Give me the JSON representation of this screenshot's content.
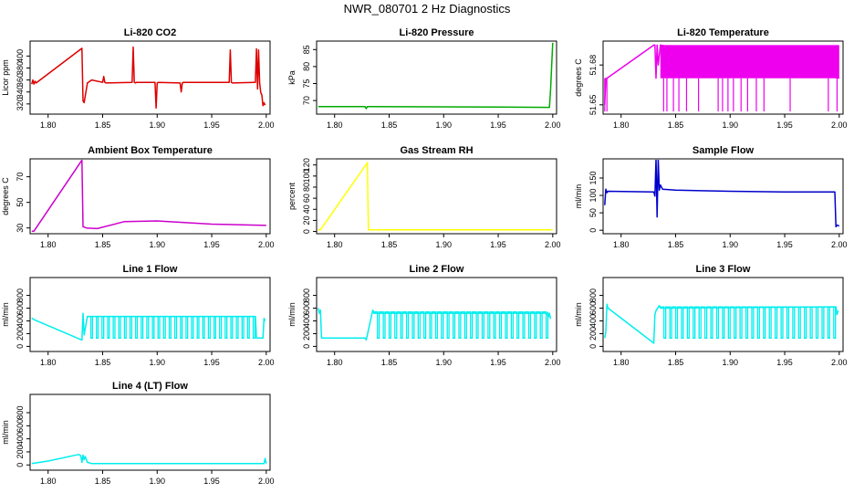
{
  "figure_title": "NWR_080701  2 Hz Diagnostics",
  "chart_data": [
    {
      "type": "line",
      "title": "Li-820 CO2",
      "ylabel": "Licor ppm",
      "color": "#dd0000",
      "xlim": [
        1.7835,
        2.0035
      ],
      "ylim": [
        303,
        425
      ],
      "xticks": [
        "1.80",
        "1.85",
        "1.90",
        "1.95",
        "2.00"
      ],
      "yticks": [
        320,
        340,
        360,
        380,
        400
      ],
      "series": [
        {
          "name": "co2",
          "x": [
            1.785,
            1.786,
            1.787,
            1.788,
            1.789,
            1.831,
            1.832,
            1.833,
            1.836,
            1.84,
            1.85,
            1.851,
            1.852,
            1.853,
            1.877,
            1.878,
            1.879,
            1.88,
            1.881,
            1.898,
            1.899,
            1.9,
            1.901,
            1.921,
            1.922,
            1.923,
            1.924,
            1.966,
            1.967,
            1.968,
            1.969,
            1.989,
            1.99,
            1.991,
            1.992,
            1.993,
            1.994,
            1.995,
            1.996,
            1.997,
            1.998,
            1.999
          ],
          "y": [
            353,
            360,
            353,
            358,
            355,
            413,
            325,
            322,
            355,
            360,
            356,
            366,
            356,
            355,
            356,
            415,
            356,
            355,
            356,
            356,
            313,
            355,
            356,
            355,
            340,
            355,
            356,
            356,
            410,
            356,
            355,
            356,
            356,
            412,
            345,
            410,
            355,
            339,
            335,
            317,
            322,
            318
          ]
        }
      ]
    },
    {
      "type": "line",
      "title": "Li-820 Pressure",
      "ylabel": "kPa",
      "color": "#00aa00",
      "xlim": [
        1.7835,
        2.0035
      ],
      "ylim": [
        66,
        87.5
      ],
      "xticks": [
        "1.80",
        "1.85",
        "1.90",
        "1.95",
        "2.00"
      ],
      "yticks": [
        70,
        75,
        80,
        85
      ],
      "series": [
        {
          "name": "pressure",
          "x": [
            1.785,
            1.828,
            1.829,
            1.83,
            1.831,
            1.95,
            1.997,
            1.998,
            1.999,
            2.0
          ],
          "y": [
            68.2,
            68.2,
            67.6,
            68.2,
            68.2,
            68.1,
            68.0,
            73,
            80,
            87
          ]
        }
      ]
    },
    {
      "type": "line",
      "title": "Li-820 Temperature",
      "ylabel": "degrees C",
      "color": "#ee00ee",
      "xlim": [
        1.7835,
        2.0035
      ],
      "ylim": [
        51.643,
        51.698
      ],
      "xticks": [
        "1.80",
        "1.85",
        "1.90",
        "1.95",
        "2.00"
      ],
      "yticks": [
        51.65,
        51.68
      ],
      "series": [
        {
          "name": "temperature",
          "x": [
            1.785,
            1.786,
            1.787,
            1.83,
            1.831,
            1.832,
            1.833,
            1.834,
            1.836,
            2.0
          ],
          "y": [
            51.65,
            51.67,
            51.67,
            51.695,
            51.695,
            51.67,
            51.695,
            51.68,
            51.695,
            51.67
          ],
          "band_x": [
            1.836,
            2.0
          ],
          "band_y": [
            51.67,
            51.695
          ],
          "low_value": 51.645
        }
      ]
    },
    {
      "type": "line",
      "title": "Ambient Box Temperature",
      "ylabel": "degrees C",
      "color": "#cc00cc",
      "xlim": [
        1.7835,
        2.0035
      ],
      "ylim": [
        25.5,
        84
      ],
      "xticks": [
        "1.80",
        "1.85",
        "1.90",
        "1.95",
        "2.00"
      ],
      "yticks": [
        30,
        50,
        70
      ],
      "series": [
        {
          "name": "box temperature",
          "x": [
            1.785,
            1.787,
            1.831,
            1.832,
            1.835,
            1.845,
            1.87,
            1.9,
            1.95,
            2.0
          ],
          "y": [
            27.5,
            27.5,
            83,
            31,
            30,
            29.5,
            35,
            35.5,
            33,
            32
          ]
        }
      ]
    },
    {
      "type": "line",
      "title": "Gas Stream RH",
      "ylabel": "percent",
      "color": "#ffff00",
      "xlim": [
        1.7835,
        2.0035
      ],
      "ylim": [
        -4,
        131
      ],
      "xticks": [
        "1.80",
        "1.85",
        "1.90",
        "1.95",
        "2.00"
      ],
      "yticks": [
        0,
        20,
        40,
        60,
        80,
        100,
        120
      ],
      "series": [
        {
          "name": "rh",
          "x": [
            1.785,
            1.787,
            1.83,
            1.831,
            1.835,
            2.0
          ],
          "y": [
            3,
            3,
            124,
            3,
            3,
            3
          ]
        }
      ]
    },
    {
      "type": "line",
      "title": "Sample Flow",
      "ylabel": "ml/min",
      "color": "#0000cc",
      "xlim": [
        1.7835,
        2.0035
      ],
      "ylim": [
        -10,
        205
      ],
      "xticks": [
        "1.80",
        "1.85",
        "1.90",
        "1.95",
        "2.00"
      ],
      "yticks": [
        0,
        50,
        100,
        150
      ],
      "series": [
        {
          "name": "sample flow",
          "x": [
            1.785,
            1.786,
            1.787,
            1.788,
            1.83,
            1.831,
            1.832,
            1.833,
            1.834,
            1.835,
            1.836,
            1.838,
            1.85,
            1.9,
            1.95,
            1.996,
            1.997,
            1.998,
            2.0
          ],
          "y": [
            72,
            118,
            108,
            112,
            110,
            98,
            205,
            38,
            205,
            115,
            130,
            118,
            115,
            112,
            110,
            110,
            10,
            15,
            12
          ]
        }
      ]
    },
    {
      "type": "line",
      "title": "Line 1 Flow",
      "ylabel": "ml/min",
      "color": "#00eeee",
      "xlim": [
        1.7835,
        2.0035
      ],
      "ylim": [
        -80,
        1080
      ],
      "xticks": [
        "1.80",
        "1.85",
        "1.90",
        "1.95",
        "2.00"
      ],
      "yticks": [
        0,
        200,
        400,
        600,
        800
      ],
      "series": [
        {
          "name": "line 1",
          "x": [
            1.785,
            1.787,
            1.831,
            1.832,
            1.833,
            1.836,
            1.99,
            1.991,
            1.997,
            1.998,
            1.999
          ],
          "y": [
            445,
            420,
            100,
            520,
            180,
            470,
            470,
            130,
            130,
            440,
            400
          ],
          "pulse_range": [
            1.836,
            1.99
          ],
          "pulse_high": 470,
          "pulse_low": 130
        }
      ]
    },
    {
      "type": "line",
      "title": "Line 2 Flow",
      "ylabel": "ml/min",
      "color": "#00eeee",
      "xlim": [
        1.7835,
        2.0035
      ],
      "ylim": [
        -80,
        1080
      ],
      "xticks": [
        "1.80",
        "1.85",
        "1.90",
        "1.95",
        "2.00"
      ],
      "yticks": [
        0,
        200,
        400,
        600,
        800
      ],
      "series": [
        {
          "name": "line 2",
          "x": [
            1.785,
            1.786,
            1.787,
            1.788,
            1.828,
            1.829,
            1.835,
            1.836,
            1.995,
            1.996,
            1.997,
            1.998
          ],
          "y": [
            600,
            520,
            570,
            130,
            130,
            100,
            570,
            520,
            520,
            460,
            520,
            430
          ],
          "pulse_range": [
            1.836,
            1.996
          ],
          "pulse_high": 540,
          "pulse_low": 130
        }
      ]
    },
    {
      "type": "line",
      "title": "Line 3 Flow",
      "ylabel": "ml/min",
      "color": "#00eeee",
      "xlim": [
        1.7835,
        2.0035
      ],
      "ylim": [
        -80,
        1080
      ],
      "xticks": [
        "1.80",
        "1.85",
        "1.90",
        "1.95",
        "2.00"
      ],
      "yticks": [
        0,
        200,
        400,
        600,
        800
      ],
      "series": [
        {
          "name": "line 3",
          "x": [
            1.785,
            1.786,
            1.787,
            1.788,
            1.83,
            1.831,
            1.832,
            1.835,
            1.836,
            1.997,
            1.998,
            1.999
          ],
          "y": [
            130,
            230,
            660,
            600,
            50,
            500,
            560,
            640,
            600,
            620,
            500,
            560
          ],
          "pulse_range": [
            1.836,
            1.997
          ],
          "pulse_high": 620,
          "pulse_low": 130
        }
      ]
    },
    {
      "type": "line",
      "title": "Line 4 (LT) Flow",
      "ylabel": "ml/min",
      "color": "#00eeee",
      "xlim": [
        1.7835,
        2.0035
      ],
      "ylim": [
        -80,
        1080
      ],
      "xticks": [
        "1.80",
        "1.85",
        "1.90",
        "1.95",
        "2.00"
      ],
      "yticks": [
        0,
        200,
        400,
        600,
        800
      ],
      "series": [
        {
          "name": "line 4",
          "x": [
            1.785,
            1.8,
            1.828,
            1.83,
            1.831,
            1.832,
            1.833,
            1.834,
            1.836,
            1.84,
            1.998,
            1.999,
            2.0
          ],
          "y": [
            20,
            60,
            160,
            140,
            40,
            150,
            80,
            130,
            40,
            20,
            20,
            100,
            20
          ]
        }
      ]
    }
  ]
}
